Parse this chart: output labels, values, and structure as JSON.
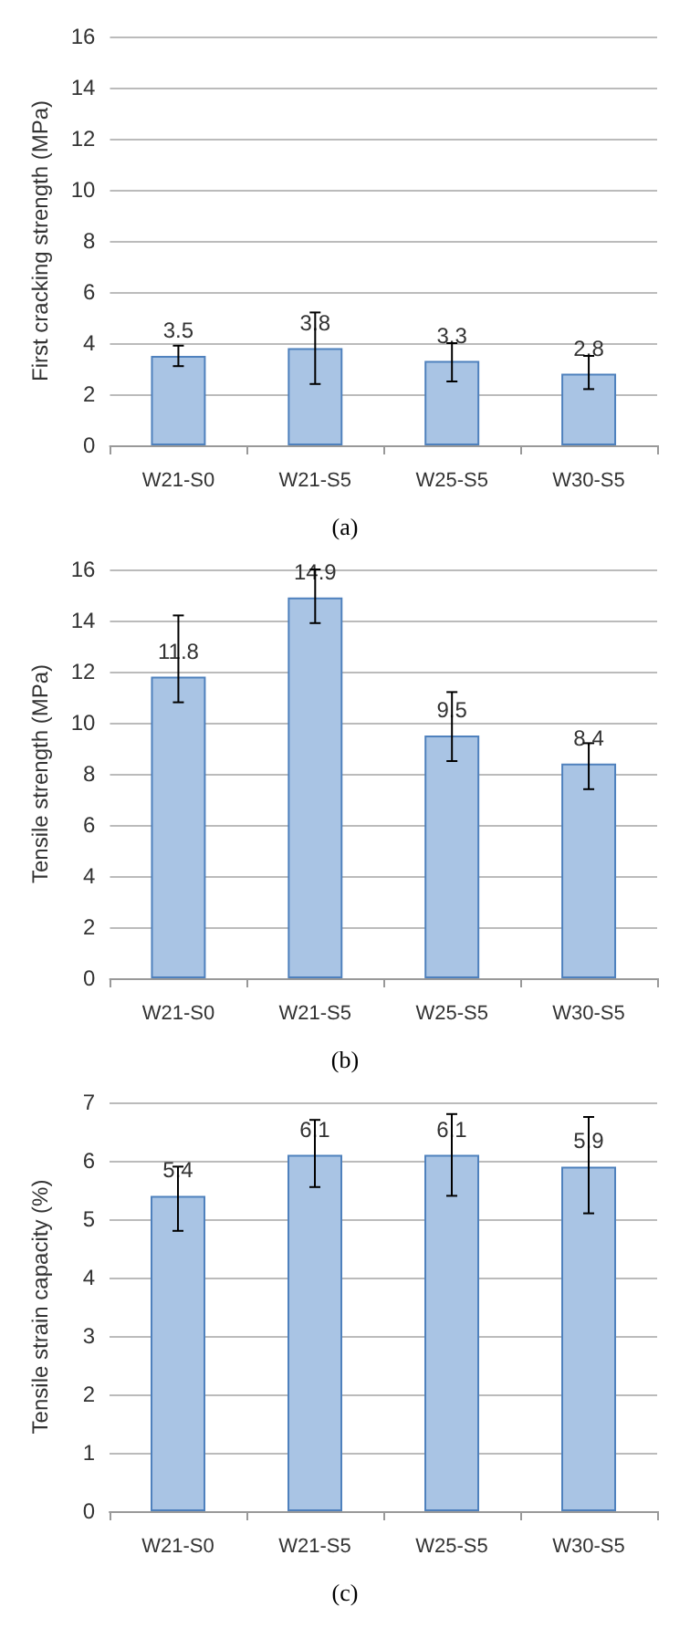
{
  "chart_data": [
    {
      "type": "bar",
      "title": "(a)",
      "ylabel": "First cracking strength (MPa)",
      "categories": [
        "W21-S0",
        "W21-S5",
        "W25-S5",
        "W30-S5"
      ],
      "color": "#a9c4e4",
      "values": [
        3.5,
        3.8,
        3.3,
        2.8
      ],
      "errors": [
        [
          3.1,
          3.9
        ],
        [
          2.4,
          5.2
        ],
        [
          2.5,
          4.0
        ],
        [
          2.2,
          3.5
        ]
      ],
      "ylim": [
        0,
        16
      ],
      "yticks": [
        0,
        2,
        4,
        6,
        8,
        10,
        12,
        14,
        16
      ],
      "grid": "y",
      "data_labels": true
    },
    {
      "type": "bar",
      "title": "(b)",
      "ylabel": "Tensile strength (MPa)",
      "categories": [
        "W21-S0",
        "W21-S5",
        "W25-S5",
        "W30-S5"
      ],
      "color": "#a9c4e4",
      "values": [
        11.8,
        14.9,
        9.5,
        8.4
      ],
      "errors": [
        [
          10.8,
          14.2
        ],
        [
          13.9,
          16.0
        ],
        [
          8.5,
          11.2
        ],
        [
          7.4,
          9.2
        ]
      ],
      "ylim": [
        0,
        16
      ],
      "yticks": [
        0,
        2,
        4,
        6,
        8,
        10,
        12,
        14,
        16
      ],
      "grid": "y",
      "data_labels": true
    },
    {
      "type": "bar",
      "title": "(c)",
      "ylabel": "Tensile strain capacity (%)",
      "categories": [
        "W21-S0",
        "W21-S5",
        "W25-S5",
        "W30-S5"
      ],
      "color": "#a9c4e4",
      "values": [
        5.4,
        6.1,
        6.1,
        5.9
      ],
      "errors": [
        [
          4.8,
          5.9
        ],
        [
          5.55,
          6.7
        ],
        [
          5.4,
          6.8
        ],
        [
          5.1,
          6.75
        ]
      ],
      "ylim": [
        0,
        7
      ],
      "yticks": [
        0,
        1,
        2,
        3,
        4,
        5,
        6,
        7
      ],
      "grid": "y",
      "data_labels": true
    }
  ]
}
